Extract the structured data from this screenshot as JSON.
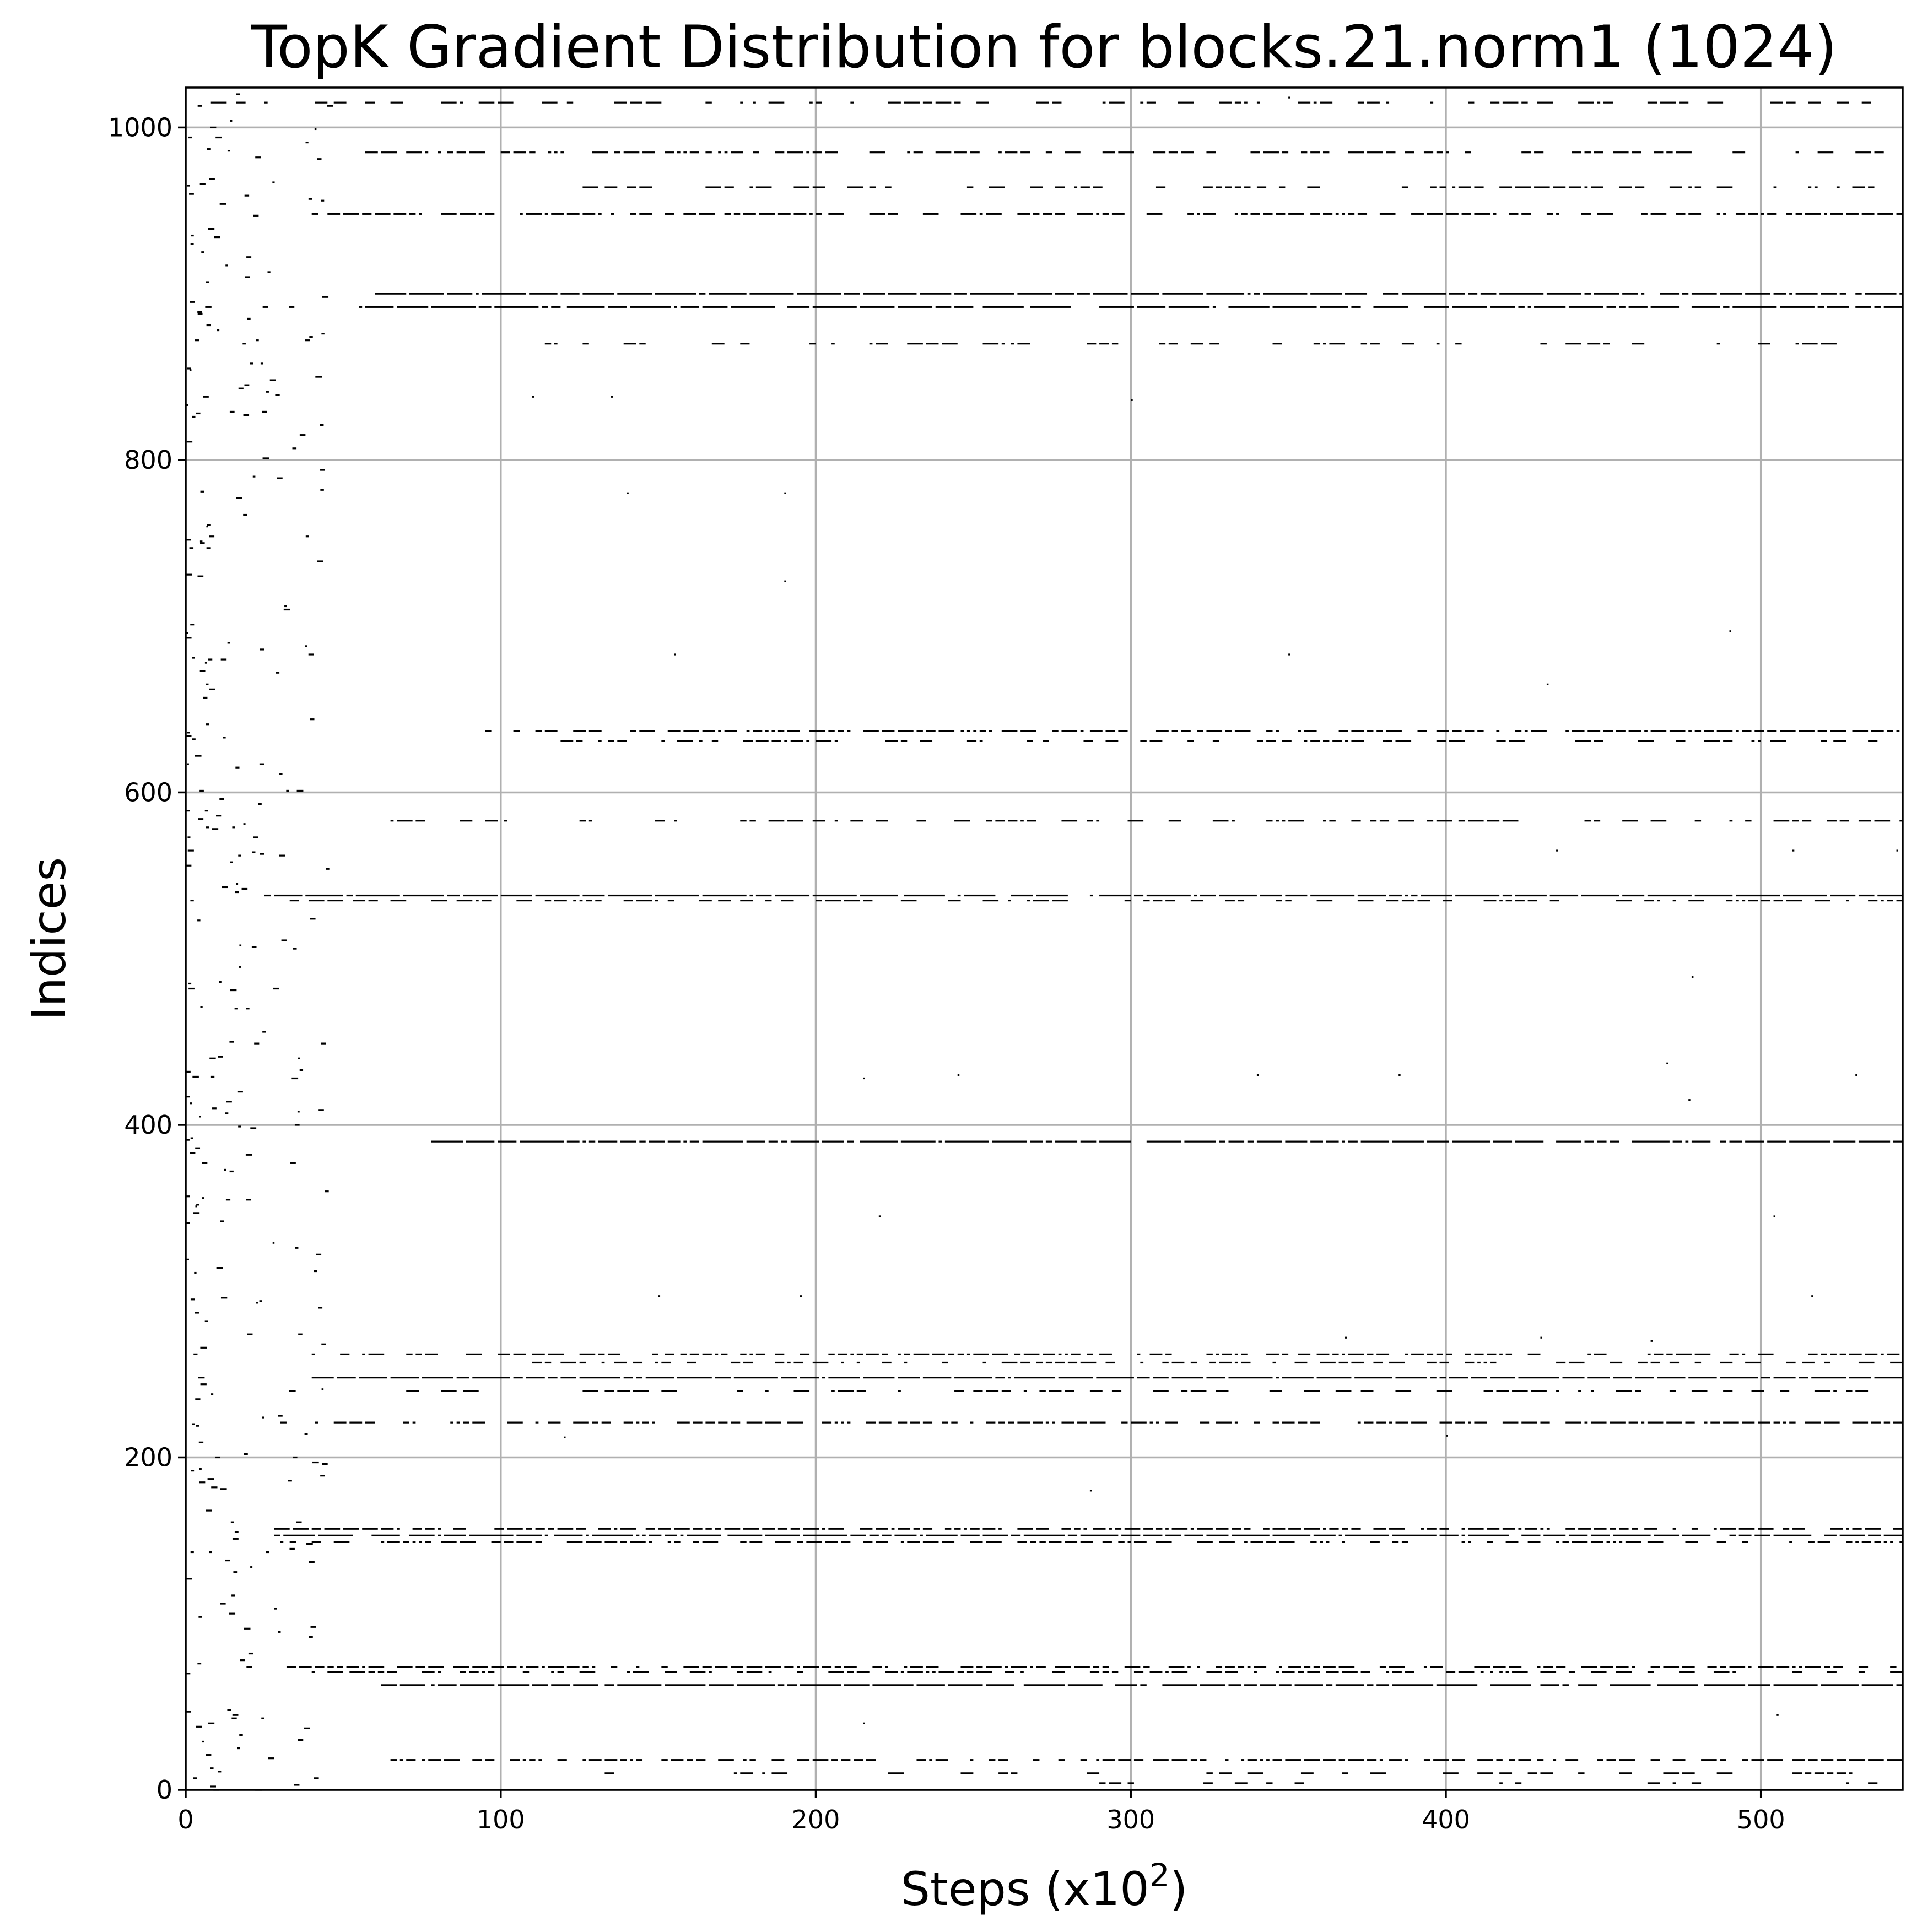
{
  "chart_data": {
    "type": "scatter",
    "title": "TopK Gradient Distribution for blocks.21.norm1 (1024)",
    "xlabel": "Steps (x10",
    "xlabel_sup": "2",
    "xlabel_close": ")",
    "ylabel": "Indices",
    "xlim": [
      0,
      545
    ],
    "ylim": [
      0,
      1024
    ],
    "x_ticks": [
      0,
      100,
      200,
      300,
      400,
      500
    ],
    "y_ticks": [
      0,
      200,
      400,
      600,
      800,
      1000
    ],
    "grid": true,
    "marker_color": "#000000",
    "persistent_bands": [
      {
        "index": 1015,
        "x_start": 0,
        "x_end": 545,
        "density": 0.35
      },
      {
        "index": 985,
        "x_start": 55,
        "x_end": 545,
        "density": 0.55
      },
      {
        "index": 964,
        "x_start": 120,
        "x_end": 545,
        "density": 0.4
      },
      {
        "index": 948,
        "x_start": 40,
        "x_end": 545,
        "density": 0.65
      },
      {
        "index": 900,
        "x_start": 60,
        "x_end": 545,
        "density": 0.95
      },
      {
        "index": 892,
        "x_start": 55,
        "x_end": 545,
        "density": 0.85
      },
      {
        "index": 870,
        "x_start": 110,
        "x_end": 545,
        "density": 0.3
      },
      {
        "index": 637,
        "x_start": 95,
        "x_end": 545,
        "density": 0.75
      },
      {
        "index": 631,
        "x_start": 110,
        "x_end": 545,
        "density": 0.35
      },
      {
        "index": 583,
        "x_start": 65,
        "x_end": 545,
        "density": 0.35
      },
      {
        "index": 538,
        "x_start": 25,
        "x_end": 545,
        "density": 0.85
      },
      {
        "index": 535,
        "x_start": 30,
        "x_end": 545,
        "density": 0.45
      },
      {
        "index": 390,
        "x_start": 78,
        "x_end": 545,
        "density": 0.9
      },
      {
        "index": 262,
        "x_start": 40,
        "x_end": 545,
        "density": 0.6
      },
      {
        "index": 257,
        "x_start": 110,
        "x_end": 545,
        "density": 0.5
      },
      {
        "index": 248,
        "x_start": 40,
        "x_end": 545,
        "density": 0.97
      },
      {
        "index": 240,
        "x_start": 60,
        "x_end": 545,
        "density": 0.35
      },
      {
        "index": 221,
        "x_start": 30,
        "x_end": 545,
        "density": 0.7
      },
      {
        "index": 157,
        "x_start": 28,
        "x_end": 545,
        "density": 0.8
      },
      {
        "index": 153,
        "x_start": 28,
        "x_end": 545,
        "density": 0.9
      },
      {
        "index": 149,
        "x_start": 30,
        "x_end": 545,
        "density": 0.5
      },
      {
        "index": 74,
        "x_start": 30,
        "x_end": 545,
        "density": 0.7
      },
      {
        "index": 71,
        "x_start": 40,
        "x_end": 545,
        "density": 0.5
      },
      {
        "index": 63,
        "x_start": 62,
        "x_end": 545,
        "density": 0.85
      },
      {
        "index": 18,
        "x_start": 65,
        "x_end": 545,
        "density": 0.65
      },
      {
        "index": 10,
        "x_start": 130,
        "x_end": 545,
        "density": 0.2
      },
      {
        "index": 4,
        "x_start": 280,
        "x_end": 545,
        "density": 0.15
      }
    ],
    "early_scatter": {
      "x_start": 0,
      "x_end": 45,
      "count": 300
    },
    "sparse_outliers": [
      [
        190,
        727
      ],
      [
        350,
        683
      ],
      [
        490,
        697
      ],
      [
        432,
        665
      ],
      [
        220,
        345
      ],
      [
        504,
        345
      ],
      [
        516,
        297
      ],
      [
        478,
        489
      ],
      [
        477,
        415
      ],
      [
        470,
        437
      ],
      [
        287,
        180
      ],
      [
        215,
        40
      ],
      [
        505,
        45
      ],
      [
        400,
        213
      ],
      [
        120,
        212
      ],
      [
        140,
        780
      ],
      [
        190,
        780
      ],
      [
        300,
        836
      ],
      [
        110,
        838
      ],
      [
        135,
        838
      ],
      [
        245,
        430
      ],
      [
        340,
        430
      ],
      [
        385,
        430
      ],
      [
        530,
        430
      ],
      [
        155,
        683
      ],
      [
        350,
        1018
      ],
      [
        430,
        272
      ],
      [
        465,
        270
      ],
      [
        368,
        272
      ],
      [
        435,
        565
      ],
      [
        510,
        565
      ],
      [
        543,
        565
      ],
      [
        215,
        428
      ],
      [
        150,
        297
      ],
      [
        195,
        297
      ]
    ]
  }
}
